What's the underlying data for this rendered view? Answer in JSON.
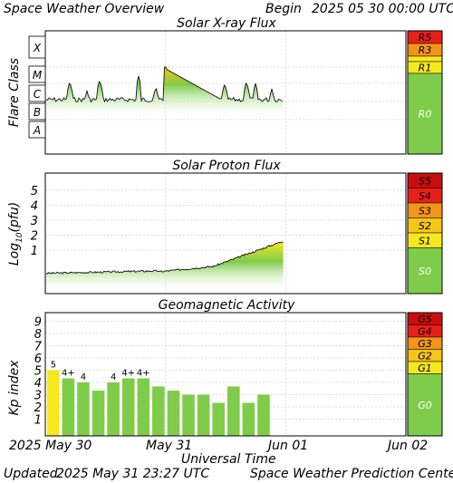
{
  "header": {
    "title": "Space Weather Overview",
    "begin_label": "Begin",
    "begin_value": "2025 05 30 00:00 UTC"
  },
  "footer": {
    "updated_label": "Updated",
    "updated_value": "2025 May 31 23:27 UTC",
    "center": "Space Weather Prediction Center"
  },
  "x_axis": {
    "label": "Universal Time",
    "ticks": [
      "2025 May 30",
      "May 31",
      "Jun 01",
      "Jun 02"
    ]
  },
  "colors": {
    "green": "#7fcc4a",
    "yellow": "#f5e81e",
    "gold": "#f5c518",
    "orange": "#f39519",
    "red": "#e8201a",
    "darkred": "#c90e0e",
    "grid": "#dcdcdc",
    "frame": "#000000"
  },
  "chart_data": [
    {
      "type": "line",
      "title": "Solar X-ray Flux",
      "ylabel": "Flare Class",
      "y_classes": [
        "X",
        "M",
        "C",
        "B",
        "A"
      ],
      "scale_labels": [
        "R5",
        "R3",
        "R1",
        "R0"
      ],
      "x_range_days": [
        0,
        3
      ],
      "data_end_day": 1.98,
      "baseline_level": "C1",
      "peak_level": "M1.4",
      "peak_day": 0.82
    },
    {
      "type": "line",
      "title": "Solar Proton Flux",
      "ylabel": "Log10(pfu)",
      "ylabel_main": "Log",
      "ylabel_sub": "10",
      "ylabel_tail": "(pfu)",
      "ylim": [
        -1,
        6
      ],
      "yticks": [
        "5",
        "4",
        "3",
        "2",
        "1"
      ],
      "scale_labels": [
        "S5",
        "S4",
        "S3",
        "S2",
        "S1",
        "S0"
      ],
      "x_range_days": [
        0,
        3
      ],
      "data_end_day": 1.98,
      "start_value": -0.5,
      "end_value": 1.6
    },
    {
      "type": "bar",
      "title": "Geomagnetic Activity",
      "ylabel": "Kp index",
      "ylim": [
        0,
        9
      ],
      "yticks": [
        "9",
        "8",
        "7",
        "6",
        "5",
        "4",
        "3",
        "2",
        "1"
      ],
      "scale_labels": [
        "G5",
        "G4",
        "G3",
        "G2",
        "G1",
        "G0"
      ],
      "x_range_days": [
        0,
        3
      ],
      "values": [
        5,
        4.33,
        4,
        3.33,
        4,
        4.33,
        4.33,
        3.67,
        3.33,
        3,
        3,
        2.33,
        3.67,
        2.33,
        3
      ],
      "bar_labels": [
        "5",
        "4+",
        "4",
        "",
        "4",
        "4+",
        "4+",
        "",
        "",
        "",
        "",
        "",
        "",
        "",
        ""
      ]
    }
  ]
}
